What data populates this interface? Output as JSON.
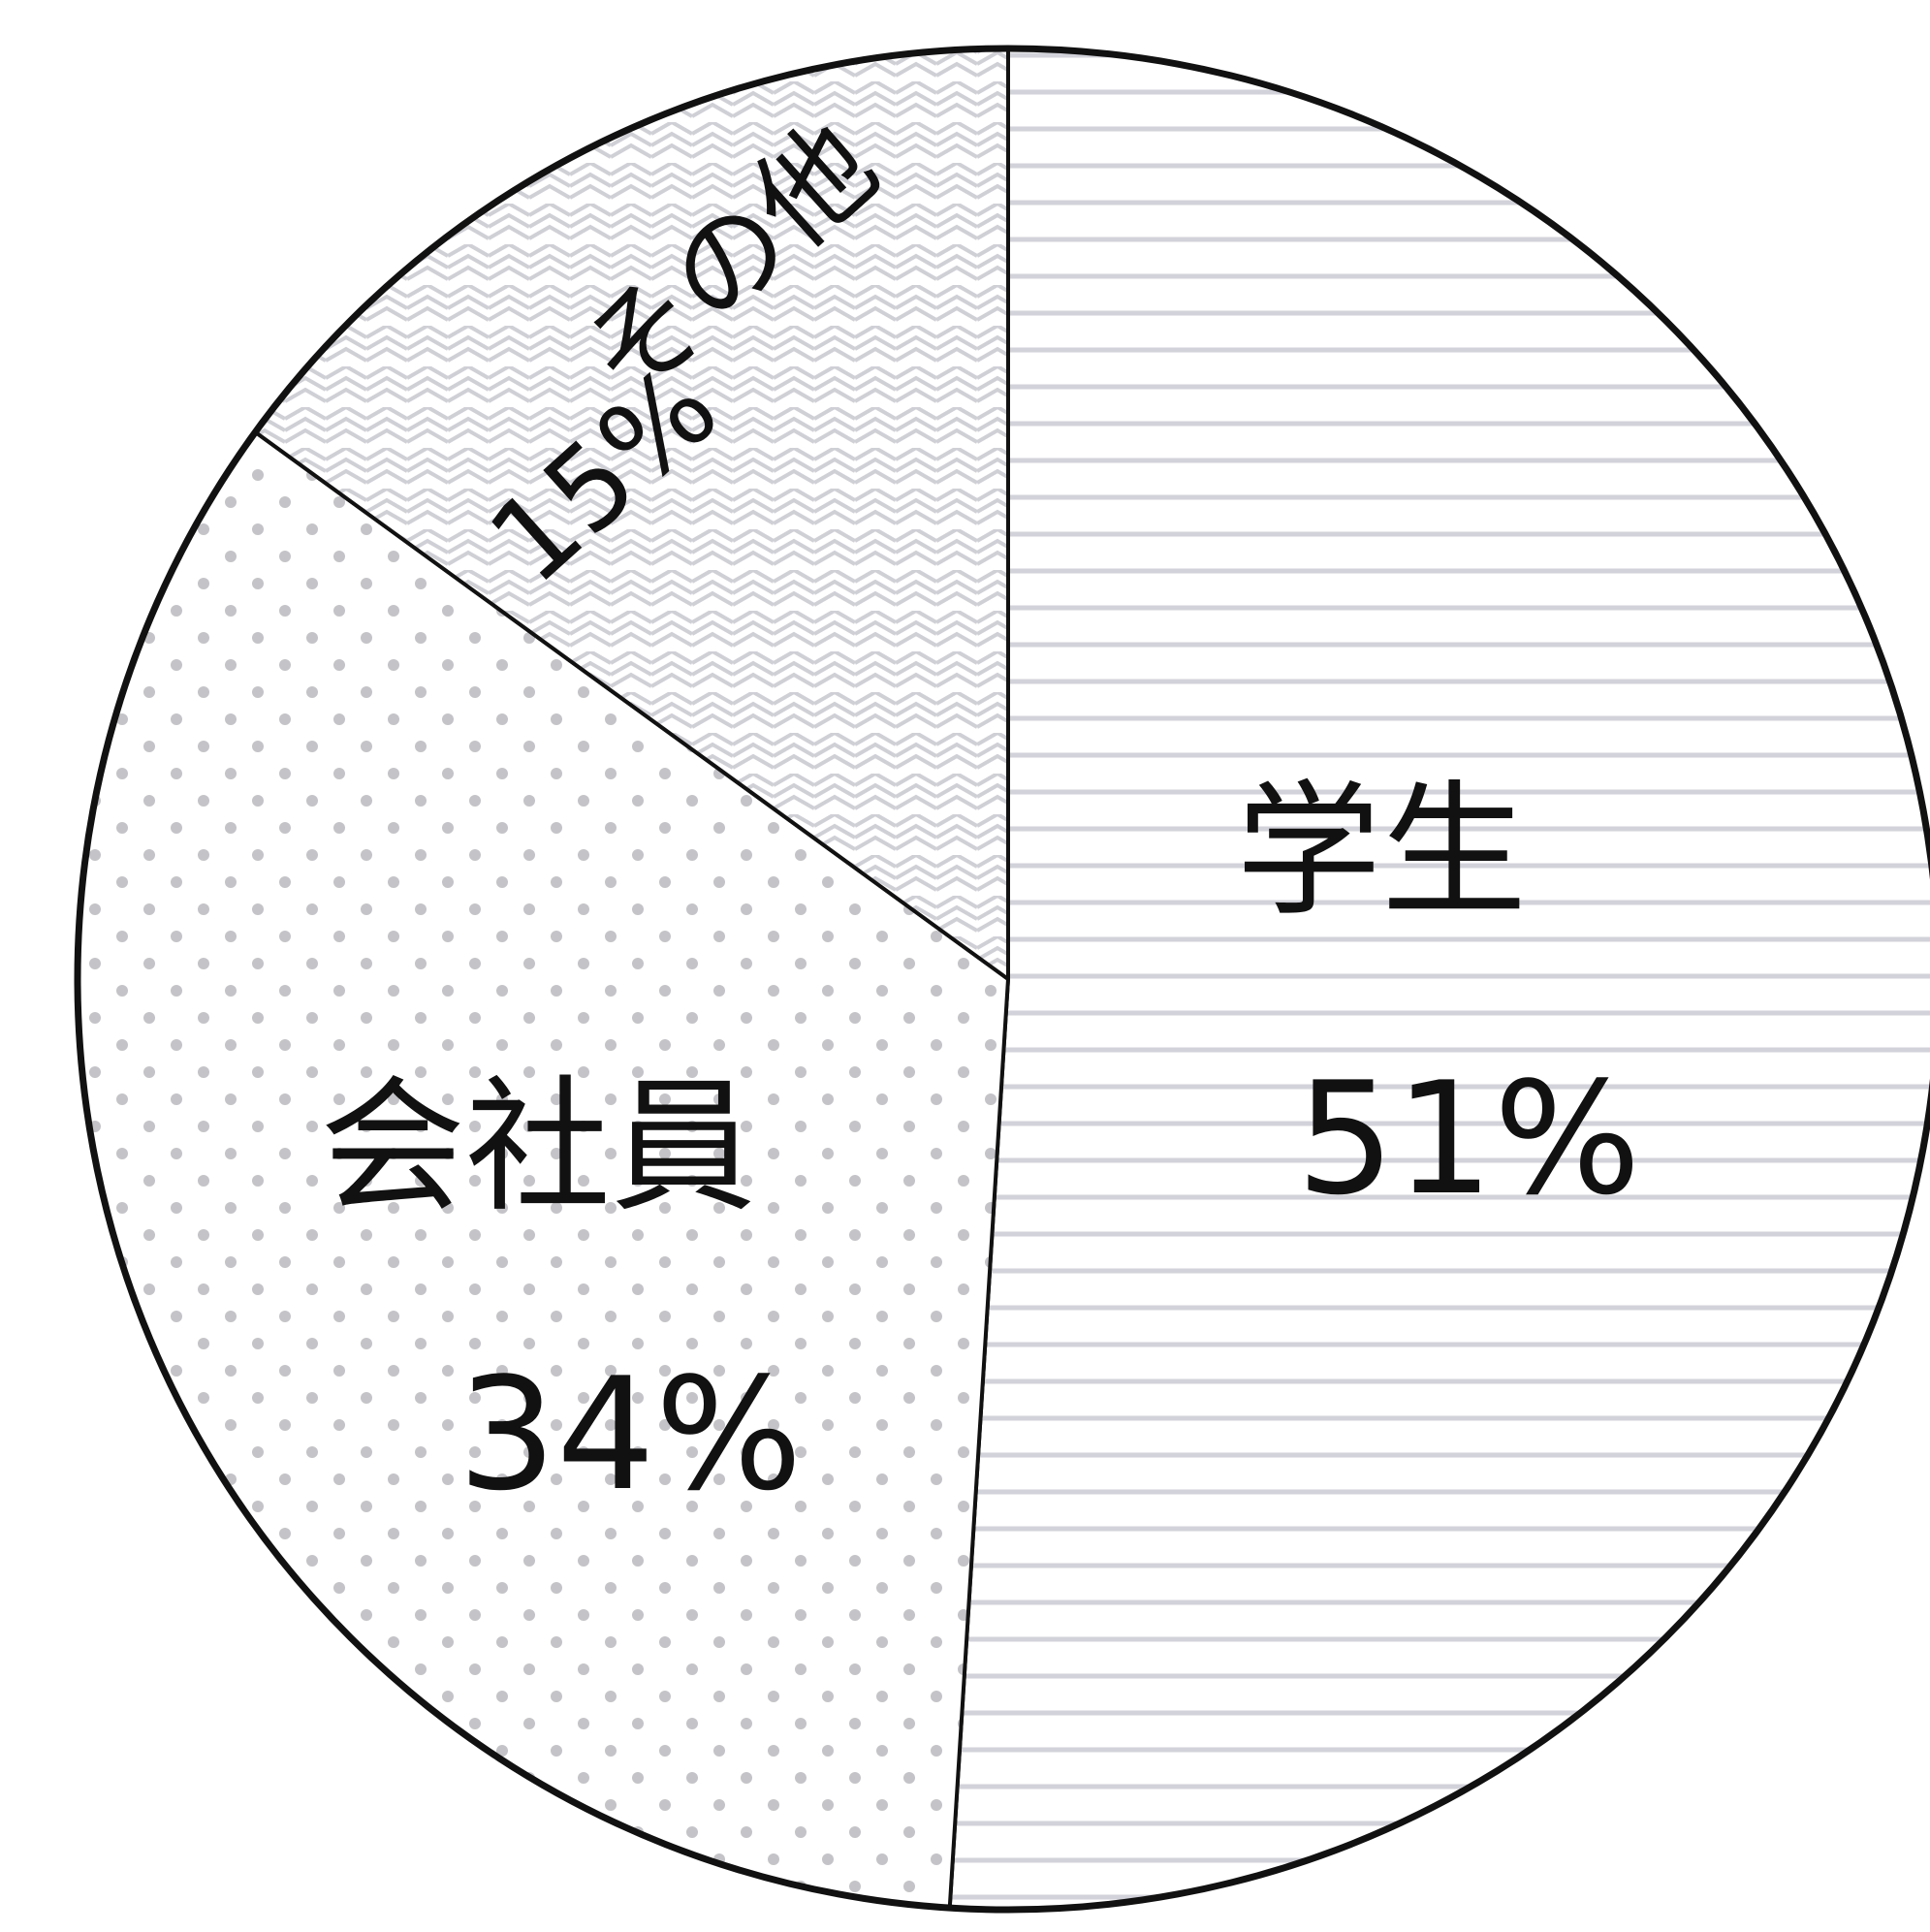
{
  "chart_data": {
    "type": "pie",
    "slices": [
      {
        "key": "student",
        "name": "学生",
        "value": 51,
        "label": "51%",
        "pattern": "horizontal-lines"
      },
      {
        "key": "employee",
        "name": "会社員",
        "value": 34,
        "label": "34%",
        "pattern": "dots"
      },
      {
        "key": "other",
        "name": "その他",
        "value": 15,
        "label": "15%",
        "pattern": "herringbone"
      }
    ],
    "colors": {
      "outline": "#111111",
      "pattern_line": "#d2d2da",
      "dot": "#c4c4c8",
      "herringbone": "#cfcfd6"
    }
  }
}
